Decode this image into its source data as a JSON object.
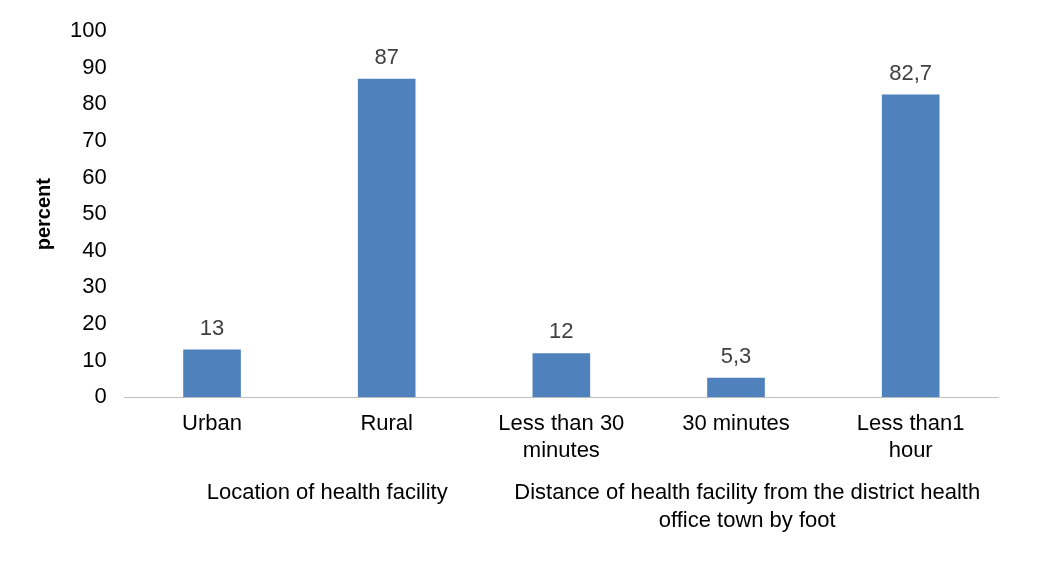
{
  "chart_data": {
    "type": "bar",
    "ylabel": "percent",
    "categories": [
      "Urban",
      "Rural",
      "Less than 30 minutes",
      "30 minutes",
      "Less than1 hour"
    ],
    "values": [
      13,
      87,
      12,
      5.3,
      82.7
    ],
    "color": "#4f81bd",
    "value_labels": [
      "13",
      "87",
      "12",
      "5,3",
      "82,7"
    ],
    "ylim": [
      0,
      100
    ],
    "yticks": [
      0,
      10,
      20,
      30,
      40,
      50,
      60,
      70,
      80,
      90,
      100
    ],
    "grid": false,
    "legend": false,
    "annotations": [
      "Location of health facility",
      "Distance of health facility from the district health office town by foot"
    ]
  }
}
